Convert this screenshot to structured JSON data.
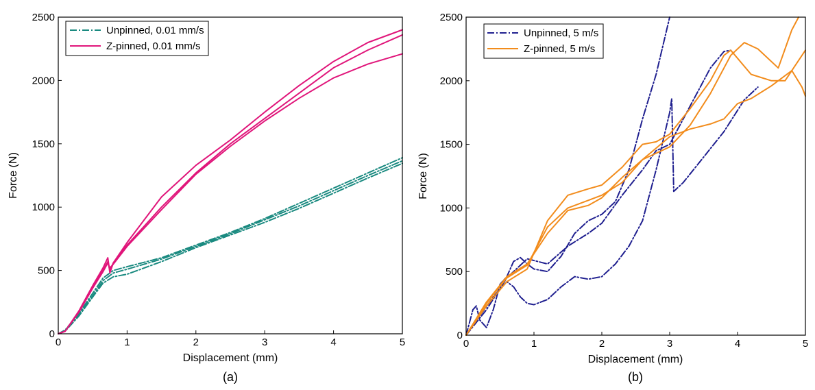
{
  "chart_data": [
    {
      "type": "line",
      "panel_label": "(a)",
      "xlabel": "Displacement (mm)",
      "ylabel": "Force (N)",
      "xlim": [
        0,
        5
      ],
      "ylim": [
        0,
        2500
      ],
      "xticks": [
        0,
        1,
        2,
        3,
        4,
        5
      ],
      "yticks": [
        0,
        500,
        1000,
        1500,
        2000,
        2500
      ],
      "grid": false,
      "legend_position": "top-left",
      "legend": [
        {
          "label": "Unpinned, 0.01 mm/s",
          "color": "#1a8a80",
          "dash": "dash-dot"
        },
        {
          "label": "Z-pinned, 0.01 mm/s",
          "color": "#e0157a",
          "dash": "solid"
        }
      ],
      "series": [
        {
          "group": 0,
          "points": [
            [
              0,
              0
            ],
            [
              0.1,
              30
            ],
            [
              0.3,
              160
            ],
            [
              0.5,
              320
            ],
            [
              0.65,
              440
            ],
            [
              0.8,
              500
            ],
            [
              1,
              530
            ],
            [
              1.5,
              600
            ],
            [
              2,
              700
            ],
            [
              2.5,
              800
            ],
            [
              3,
              910
            ],
            [
              3.5,
              1030
            ],
            [
              4,
              1150
            ],
            [
              4.5,
              1270
            ],
            [
              5,
              1390
            ]
          ]
        },
        {
          "group": 0,
          "points": [
            [
              0,
              0
            ],
            [
              0.1,
              25
            ],
            [
              0.3,
              150
            ],
            [
              0.5,
              300
            ],
            [
              0.65,
              420
            ],
            [
              0.8,
              480
            ],
            [
              1,
              510
            ],
            [
              1.5,
              590
            ],
            [
              2,
              690
            ],
            [
              2.5,
              790
            ],
            [
              3,
              900
            ],
            [
              3.5,
              1010
            ],
            [
              4,
              1130
            ],
            [
              4.5,
              1250
            ],
            [
              5,
              1365
            ]
          ]
        },
        {
          "group": 0,
          "points": [
            [
              0,
              0
            ],
            [
              0.1,
              20
            ],
            [
              0.3,
              140
            ],
            [
              0.5,
              290
            ],
            [
              0.65,
              400
            ],
            [
              0.8,
              450
            ],
            [
              1,
              470
            ],
            [
              1.5,
              570
            ],
            [
              2,
              680
            ],
            [
              2.5,
              780
            ],
            [
              3,
              880
            ],
            [
              3.5,
              990
            ],
            [
              4,
              1110
            ],
            [
              4.5,
              1230
            ],
            [
              5,
              1345
            ]
          ]
        },
        {
          "group": 1,
          "points": [
            [
              0,
              0
            ],
            [
              0.1,
              20
            ],
            [
              0.3,
              180
            ],
            [
              0.5,
              380
            ],
            [
              0.65,
              520
            ],
            [
              0.72,
              600
            ],
            [
              0.75,
              480
            ],
            [
              0.8,
              560
            ],
            [
              1,
              720
            ],
            [
              1.5,
              1080
            ],
            [
              2,
              1330
            ],
            [
              2.5,
              1530
            ],
            [
              3,
              1750
            ],
            [
              3.5,
              1960
            ],
            [
              4,
              2150
            ],
            [
              4.5,
              2300
            ],
            [
              5,
              2400
            ]
          ]
        },
        {
          "group": 1,
          "points": [
            [
              0,
              0
            ],
            [
              0.1,
              20
            ],
            [
              0.3,
              175
            ],
            [
              0.5,
              370
            ],
            [
              0.65,
              500
            ],
            [
              0.72,
              570
            ],
            [
              0.75,
              500
            ],
            [
              0.8,
              560
            ],
            [
              1,
              700
            ],
            [
              1.5,
              1000
            ],
            [
              2,
              1270
            ],
            [
              2.5,
              1500
            ],
            [
              3,
              1700
            ],
            [
              3.5,
              1900
            ],
            [
              4,
              2100
            ],
            [
              4.5,
              2240
            ],
            [
              5,
              2360
            ]
          ]
        },
        {
          "group": 1,
          "points": [
            [
              0,
              0
            ],
            [
              0.1,
              20
            ],
            [
              0.3,
              170
            ],
            [
              0.5,
              360
            ],
            [
              0.65,
              490
            ],
            [
              0.72,
              560
            ],
            [
              0.75,
              520
            ],
            [
              0.8,
              550
            ],
            [
              1,
              690
            ],
            [
              1.5,
              980
            ],
            [
              2,
              1260
            ],
            [
              2.5,
              1480
            ],
            [
              3,
              1680
            ],
            [
              3.5,
              1860
            ],
            [
              4,
              2020
            ],
            [
              4.5,
              2130
            ],
            [
              5,
              2210
            ]
          ]
        }
      ]
    },
    {
      "type": "line",
      "panel_label": "(b)",
      "xlabel": "Displacement (mm)",
      "ylabel": "Force (N)",
      "xlim": [
        0,
        5
      ],
      "ylim": [
        0,
        2500
      ],
      "xticks": [
        0,
        1,
        2,
        3,
        4,
        5
      ],
      "yticks": [
        0,
        500,
        1000,
        1500,
        2000,
        2500
      ],
      "grid": false,
      "legend_position": "top-left",
      "legend": [
        {
          "label": "Unpinned, 5 m/s",
          "color": "#1f1f8f",
          "dash": "dash-dot"
        },
        {
          "label": "Z-pinned, 5 m/s",
          "color": "#f28c1c",
          "dash": "solid"
        }
      ],
      "series": [
        {
          "group": 0,
          "points": [
            [
              0,
              0
            ],
            [
              0.1,
              200
            ],
            [
              0.15,
              230
            ],
            [
              0.2,
              120
            ],
            [
              0.3,
              60
            ],
            [
              0.4,
              200
            ],
            [
              0.5,
              400
            ],
            [
              0.6,
              460
            ],
            [
              0.7,
              580
            ],
            [
              0.8,
              610
            ],
            [
              0.9,
              560
            ],
            [
              1,
              520
            ],
            [
              1.2,
              500
            ],
            [
              1.4,
              620
            ],
            [
              1.6,
              800
            ],
            [
              1.8,
              900
            ],
            [
              2,
              950
            ],
            [
              2.2,
              1050
            ],
            [
              2.4,
              1300
            ],
            [
              2.6,
              1700
            ],
            [
              2.8,
              2050
            ],
            [
              3,
              2500
            ]
          ]
        },
        {
          "group": 0,
          "points": [
            [
              0,
              0
            ],
            [
              0.2,
              150
            ],
            [
              0.4,
              300
            ],
            [
              0.6,
              420
            ],
            [
              0.7,
              380
            ],
            [
              0.8,
              300
            ],
            [
              0.9,
              250
            ],
            [
              1,
              240
            ],
            [
              1.2,
              280
            ],
            [
              1.4,
              380
            ],
            [
              1.6,
              460
            ],
            [
              1.8,
              440
            ],
            [
              2,
              460
            ],
            [
              2.2,
              560
            ],
            [
              2.4,
              700
            ],
            [
              2.6,
              900
            ],
            [
              2.8,
              1300
            ],
            [
              3,
              1750
            ],
            [
              3.03,
              1860
            ],
            [
              3.06,
              1130
            ],
            [
              3.2,
              1200
            ],
            [
              3.5,
              1400
            ],
            [
              3.8,
              1600
            ],
            [
              4.1,
              1850
            ],
            [
              4.3,
              1950
            ]
          ]
        },
        {
          "group": 0,
          "points": [
            [
              0,
              0
            ],
            [
              0.3,
              200
            ],
            [
              0.6,
              450
            ],
            [
              0.9,
              600
            ],
            [
              1.2,
              560
            ],
            [
              1.5,
              700
            ],
            [
              1.8,
              800
            ],
            [
              2,
              880
            ],
            [
              2.3,
              1100
            ],
            [
              2.6,
              1300
            ],
            [
              2.8,
              1450
            ],
            [
              3,
              1500
            ],
            [
              3.2,
              1700
            ],
            [
              3.4,
              1900
            ],
            [
              3.6,
              2100
            ],
            [
              3.8,
              2230
            ],
            [
              3.9,
              2240
            ]
          ]
        },
        {
          "group": 1,
          "points": [
            [
              0,
              0
            ],
            [
              0.3,
              250
            ],
            [
              0.6,
              450
            ],
            [
              0.9,
              550
            ],
            [
              1.2,
              850
            ],
            [
              1.5,
              1000
            ],
            [
              1.8,
              1060
            ],
            [
              2,
              1100
            ],
            [
              2.3,
              1200
            ],
            [
              2.6,
              1380
            ],
            [
              3,
              1480
            ],
            [
              3.3,
              1650
            ],
            [
              3.6,
              1900
            ],
            [
              3.9,
              2200
            ],
            [
              4.1,
              2300
            ],
            [
              4.3,
              2250
            ],
            [
              4.6,
              2100
            ],
            [
              4.8,
              2400
            ],
            [
              4.9,
              2500
            ]
          ]
        },
        {
          "group": 1,
          "points": [
            [
              0,
              0
            ],
            [
              0.3,
              230
            ],
            [
              0.6,
              420
            ],
            [
              0.9,
              520
            ],
            [
              1.2,
              900
            ],
            [
              1.5,
              1100
            ],
            [
              1.8,
              1150
            ],
            [
              2,
              1180
            ],
            [
              2.3,
              1320
            ],
            [
              2.6,
              1500
            ],
            [
              2.8,
              1520
            ],
            [
              3,
              1580
            ],
            [
              3.3,
              1780
            ],
            [
              3.6,
              2000
            ],
            [
              3.8,
              2200
            ],
            [
              3.9,
              2240
            ],
            [
              4.2,
              2050
            ],
            [
              4.5,
              2000
            ],
            [
              4.7,
              2000
            ],
            [
              5,
              2240
            ]
          ]
        },
        {
          "group": 1,
          "points": [
            [
              0,
              0
            ],
            [
              0.3,
              260
            ],
            [
              0.6,
              460
            ],
            [
              0.9,
              560
            ],
            [
              1.2,
              800
            ],
            [
              1.5,
              980
            ],
            [
              1.8,
              1020
            ],
            [
              2,
              1080
            ],
            [
              2.3,
              1240
            ],
            [
              2.6,
              1380
            ],
            [
              3,
              1560
            ],
            [
              3.3,
              1620
            ],
            [
              3.6,
              1660
            ],
            [
              3.8,
              1700
            ],
            [
              4,
              1820
            ],
            [
              4.2,
              1860
            ],
            [
              4.5,
              1960
            ],
            [
              4.8,
              2080
            ],
            [
              4.95,
              1950
            ],
            [
              5,
              1880
            ]
          ]
        }
      ]
    }
  ]
}
